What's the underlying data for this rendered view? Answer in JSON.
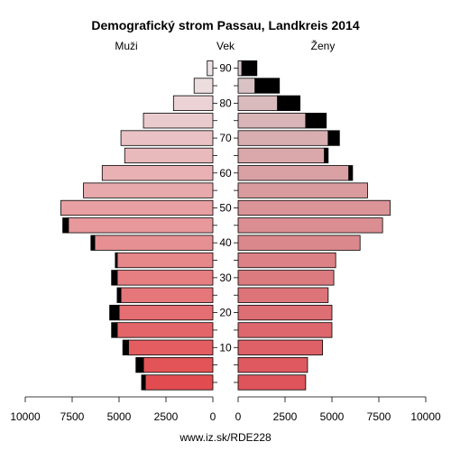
{
  "chart_data": {
    "type": "bar",
    "title": "Demografický strom Passau, Landkreis 2014",
    "footer": "www.iz.sk/RDE228",
    "left_label": "Muži",
    "center_label": "Vek",
    "right_label": "Ženy",
    "age_groups": [
      0,
      5,
      10,
      15,
      20,
      25,
      30,
      35,
      40,
      45,
      50,
      55,
      60,
      65,
      70,
      75,
      80,
      85,
      90
    ],
    "age_ticks": [
      "10",
      "20",
      "30",
      "40",
      "50",
      "60",
      "70",
      "80",
      "90"
    ],
    "x_ticks_left": [
      "10000",
      "7500",
      "5000",
      "2500",
      "0"
    ],
    "x_ticks_right": [
      "0",
      "2500",
      "5000",
      "7500",
      "10000"
    ],
    "xlim": [
      0,
      10000
    ],
    "series": [
      {
        "name": "Muži",
        "values": [
          3600,
          3700,
          4500,
          5100,
          5000,
          4900,
          5100,
          5100,
          6300,
          7700,
          8100,
          6900,
          5900,
          4700,
          4900,
          3700,
          2100,
          1000,
          300
        ]
      },
      {
        "name": "Ženy",
        "values": [
          3600,
          3700,
          4500,
          5000,
          5000,
          4800,
          5100,
          5200,
          6500,
          7700,
          8100,
          6900,
          5900,
          4600,
          4800,
          3600,
          2100,
          900,
          200
        ]
      }
    ],
    "surplus_men": [
      200,
      400,
      300,
      300,
      500,
      200,
      300,
      100,
      200,
      300,
      0,
      0,
      0,
      0,
      0,
      0,
      0,
      0,
      0
    ],
    "surplus_women": [
      0,
      0,
      0,
      0,
      0,
      0,
      0,
      0,
      0,
      0,
      0,
      0,
      200,
      200,
      600,
      1100,
      1200,
      1300,
      800
    ]
  }
}
